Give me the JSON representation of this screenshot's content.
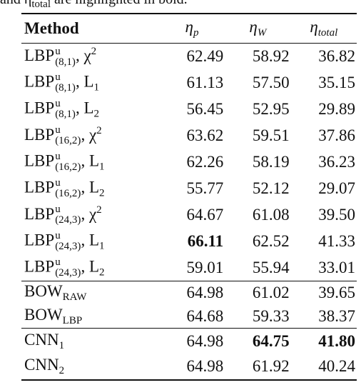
{
  "caption": {
    "pre": "and η",
    "sub": "total",
    "post": " are highlighted in bold."
  },
  "table": {
    "header": [
      {
        "text": "Method"
      },
      {
        "text": "η",
        "sub": "p"
      },
      {
        "text": "η",
        "sub": "W"
      },
      {
        "text": "η",
        "sub": "total"
      }
    ],
    "groups": [
      {
        "rows": [
          {
            "base": "LBP",
            "sup": "u",
            "sub": "(8,1)",
            "dist": {
              "text": ", χ",
              "sup": "2"
            },
            "values": [
              "62.49",
              "58.92",
              "36.82"
            ],
            "bold": [
              false,
              false,
              false
            ]
          },
          {
            "base": "LBP",
            "sup": "u",
            "sub": "(8,1)",
            "dist": {
              "text": ", L",
              "sub": "1"
            },
            "values": [
              "61.13",
              "57.50",
              "35.15"
            ],
            "bold": [
              false,
              false,
              false
            ]
          },
          {
            "base": "LBP",
            "sup": "u",
            "sub": "(8,1)",
            "dist": {
              "text": ", L",
              "sub": "2"
            },
            "values": [
              "56.45",
              "52.95",
              "29.89"
            ],
            "bold": [
              false,
              false,
              false
            ]
          },
          {
            "base": "LBP",
            "sup": "u",
            "sub": "(16,2)",
            "dist": {
              "text": ", χ",
              "sup": "2"
            },
            "values": [
              "63.62",
              "59.51",
              "37.86"
            ],
            "bold": [
              false,
              false,
              false
            ]
          },
          {
            "base": "LBP",
            "sup": "u",
            "sub": "(16,2)",
            "dist": {
              "text": ", L",
              "sub": "1"
            },
            "values": [
              "62.26",
              "58.19",
              "36.23"
            ],
            "bold": [
              false,
              false,
              false
            ]
          },
          {
            "base": "LBP",
            "sup": "u",
            "sub": "(16,2)",
            "dist": {
              "text": ", L",
              "sub": "2"
            },
            "values": [
              "55.77",
              "52.12",
              "29.07"
            ],
            "bold": [
              false,
              false,
              false
            ]
          },
          {
            "base": "LBP",
            "sup": "u",
            "sub": "(24,3)",
            "dist": {
              "text": ", χ",
              "sup": "2"
            },
            "values": [
              "64.67",
              "61.08",
              "39.50"
            ],
            "bold": [
              false,
              false,
              false
            ]
          },
          {
            "base": "LBP",
            "sup": "u",
            "sub": "(24,3)",
            "dist": {
              "text": ", L",
              "sub": "1"
            },
            "values": [
              "66.11",
              "62.52",
              "41.33"
            ],
            "bold": [
              true,
              false,
              false
            ]
          },
          {
            "base": "LBP",
            "sup": "u",
            "sub": "(24,3)",
            "dist": {
              "text": ", L",
              "sub": "2"
            },
            "values": [
              "59.01",
              "55.94",
              "33.01"
            ],
            "bold": [
              false,
              false,
              false
            ]
          }
        ]
      },
      {
        "rows": [
          {
            "base": "BOW",
            "sub": "RAW",
            "values": [
              "64.98",
              "61.02",
              "39.65"
            ],
            "bold": [
              false,
              false,
              false
            ]
          },
          {
            "base": "BOW",
            "sub": "LBP",
            "values": [
              "64.68",
              "59.33",
              "38.37"
            ],
            "bold": [
              false,
              false,
              false
            ]
          }
        ]
      },
      {
        "rows": [
          {
            "base": "CNN",
            "sub": "1",
            "values": [
              "64.98",
              "64.75",
              "41.80"
            ],
            "bold": [
              false,
              true,
              true
            ]
          },
          {
            "base": "CNN",
            "sub": "2",
            "values": [
              "64.98",
              "61.92",
              "40.24"
            ],
            "bold": [
              false,
              false,
              false
            ]
          }
        ]
      }
    ]
  }
}
